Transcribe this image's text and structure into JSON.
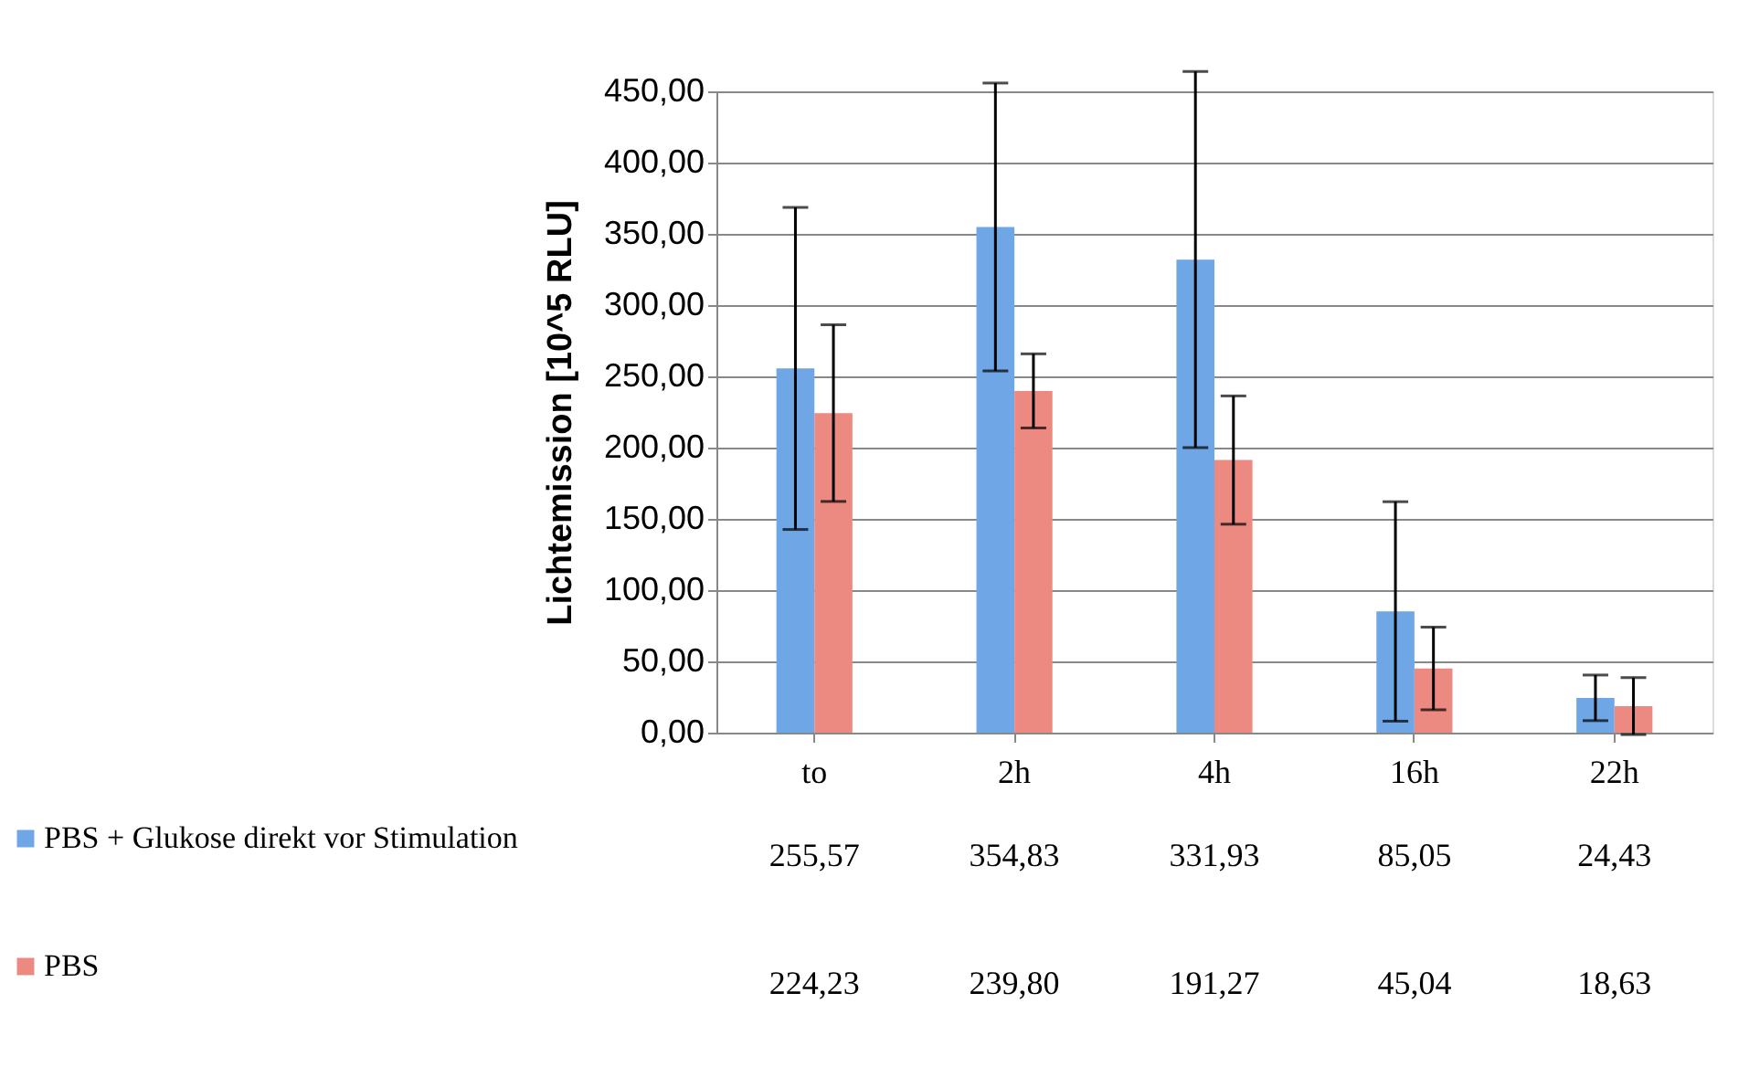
{
  "chart_data": {
    "type": "bar",
    "ylabel": "Lichtemission [10^5 RLU]",
    "categories": [
      "to",
      "2h",
      "4h",
      "16h",
      "22h"
    ],
    "series": [
      {
        "name": "PBS + Glukose direkt vor Stimulation",
        "color": "#6fa6e6",
        "values": [
          255.57,
          354.83,
          331.93,
          85.05,
          24.43
        ],
        "value_labels": [
          "255,57",
          "354,83",
          "331,93",
          "85,05",
          "24,43"
        ],
        "errors": [
          113,
          101,
          132,
          77,
          16
        ]
      },
      {
        "name": "PBS",
        "color": "#ec8a82",
        "values": [
          224.23,
          239.8,
          191.27,
          45.04,
          18.63
        ],
        "value_labels": [
          "224,23",
          "239,80",
          "191,27",
          "45,04",
          "18,63"
        ],
        "errors": [
          62,
          26,
          45,
          29,
          20
        ]
      }
    ],
    "ylim": [
      0,
      450
    ],
    "yticks": [
      {
        "value": 0,
        "label": "0,00"
      },
      {
        "value": 50,
        "label": "50,00"
      },
      {
        "value": 100,
        "label": "100,00"
      },
      {
        "value": 150,
        "label": "150,00"
      },
      {
        "value": 200,
        "label": "200,00"
      },
      {
        "value": 250,
        "label": "250,00"
      },
      {
        "value": 300,
        "label": "300,00"
      },
      {
        "value": 350,
        "label": "350,00"
      },
      {
        "value": 400,
        "label": "400,00"
      },
      {
        "value": 450,
        "label": "450,00"
      }
    ],
    "grid": "y",
    "legend": "bottom left"
  }
}
